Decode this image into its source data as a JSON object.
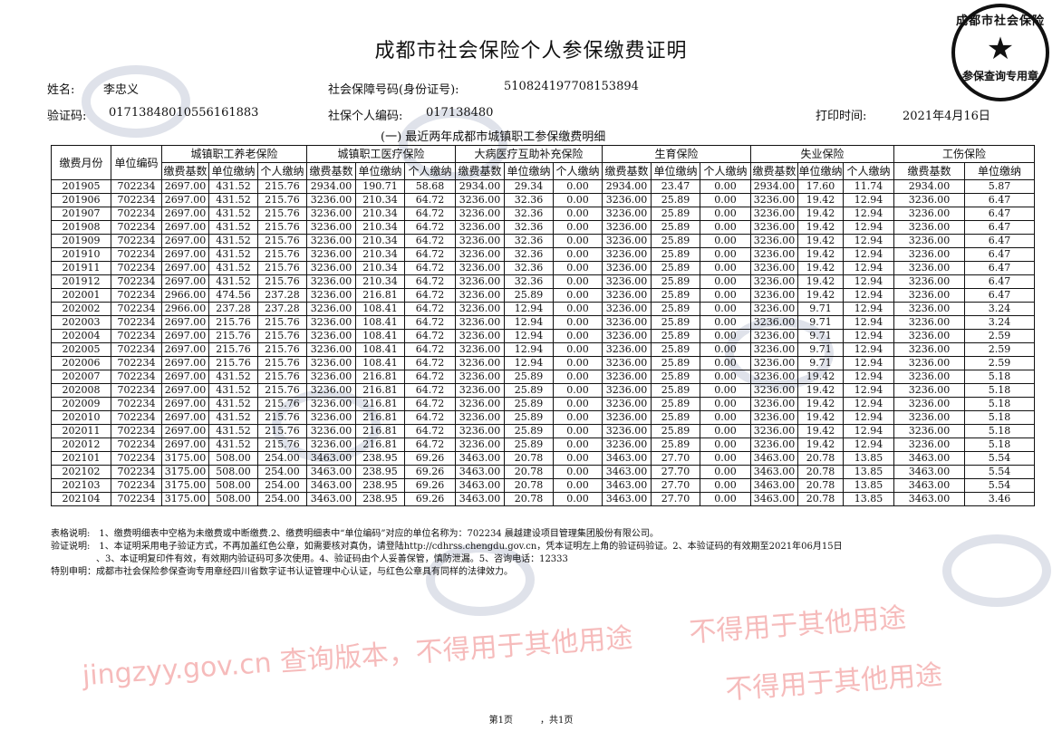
{
  "title": "成都市社会保险个人参保缴费证明",
  "info": {
    "name_label": "姓名:",
    "name": "李忠义",
    "ssn_label": "社会保障号码(身份证号):",
    "ssn": "510824197708153894",
    "verify_label": "验证码:",
    "verify": "01713848010556161883",
    "personal_code_label": "社保个人编码:",
    "personal_code": "017138480",
    "print_label": "打印时间:",
    "print_time": "2021年4月16日"
  },
  "section_title": "(一) 最近两年成都市城镇职工参保缴费明细",
  "table": {
    "col_month": "缴费月份",
    "col_unit": "单位编码",
    "groups": [
      "城镇职工养老保险",
      "城镇职工医疗保险",
      "大病医疗互助补充保险",
      "生育保险",
      "失业保险",
      "工伤保险"
    ],
    "sub": [
      "缴费基数",
      "单位缴纳",
      "个人缴纳",
      "缴费基数",
      "单位缴纳",
      "个人缴纳",
      "缴费基数",
      "单位缴纳",
      "个人缴纳",
      "缴费基数",
      "单位缴纳",
      "个人缴纳",
      "缴费基数",
      "单位缴纳",
      "个人缴纳",
      "缴费基数",
      "单位缴纳"
    ],
    "rows": [
      [
        "201905",
        "702234",
        "2697.00",
        "431.52",
        "215.76",
        "2934.00",
        "190.71",
        "58.68",
        "2934.00",
        "29.34",
        "0.00",
        "2934.00",
        "23.47",
        "0.00",
        "2934.00",
        "17.60",
        "11.74",
        "2934.00",
        "5.87"
      ],
      [
        "201906",
        "702234",
        "2697.00",
        "431.52",
        "215.76",
        "3236.00",
        "210.34",
        "64.72",
        "3236.00",
        "32.36",
        "0.00",
        "3236.00",
        "25.89",
        "0.00",
        "3236.00",
        "19.42",
        "12.94",
        "3236.00",
        "6.47"
      ],
      [
        "201907",
        "702234",
        "2697.00",
        "431.52",
        "215.76",
        "3236.00",
        "210.34",
        "64.72",
        "3236.00",
        "32.36",
        "0.00",
        "3236.00",
        "25.89",
        "0.00",
        "3236.00",
        "19.42",
        "12.94",
        "3236.00",
        "6.47"
      ],
      [
        "201908",
        "702234",
        "2697.00",
        "431.52",
        "215.76",
        "3236.00",
        "210.34",
        "64.72",
        "3236.00",
        "32.36",
        "0.00",
        "3236.00",
        "25.89",
        "0.00",
        "3236.00",
        "19.42",
        "12.94",
        "3236.00",
        "6.47"
      ],
      [
        "201909",
        "702234",
        "2697.00",
        "431.52",
        "215.76",
        "3236.00",
        "210.34",
        "64.72",
        "3236.00",
        "32.36",
        "0.00",
        "3236.00",
        "25.89",
        "0.00",
        "3236.00",
        "19.42",
        "12.94",
        "3236.00",
        "6.47"
      ],
      [
        "201910",
        "702234",
        "2697.00",
        "431.52",
        "215.76",
        "3236.00",
        "210.34",
        "64.72",
        "3236.00",
        "32.36",
        "0.00",
        "3236.00",
        "25.89",
        "0.00",
        "3236.00",
        "19.42",
        "12.94",
        "3236.00",
        "6.47"
      ],
      [
        "201911",
        "702234",
        "2697.00",
        "431.52",
        "215.76",
        "3236.00",
        "210.34",
        "64.72",
        "3236.00",
        "32.36",
        "0.00",
        "3236.00",
        "25.89",
        "0.00",
        "3236.00",
        "19.42",
        "12.94",
        "3236.00",
        "6.47"
      ],
      [
        "201912",
        "702234",
        "2697.00",
        "431.52",
        "215.76",
        "3236.00",
        "210.34",
        "64.72",
        "3236.00",
        "32.36",
        "0.00",
        "3236.00",
        "25.89",
        "0.00",
        "3236.00",
        "19.42",
        "12.94",
        "3236.00",
        "6.47"
      ],
      [
        "202001",
        "702234",
        "2966.00",
        "474.56",
        "237.28",
        "3236.00",
        "216.81",
        "64.72",
        "3236.00",
        "25.89",
        "0.00",
        "3236.00",
        "25.89",
        "0.00",
        "3236.00",
        "19.42",
        "12.94",
        "3236.00",
        "6.47"
      ],
      [
        "202002",
        "702234",
        "2966.00",
        "237.28",
        "237.28",
        "3236.00",
        "108.41",
        "64.72",
        "3236.00",
        "12.94",
        "0.00",
        "3236.00",
        "25.89",
        "0.00",
        "3236.00",
        "9.71",
        "12.94",
        "3236.00",
        "3.24"
      ],
      [
        "202003",
        "702234",
        "2697.00",
        "215.76",
        "215.76",
        "3236.00",
        "108.41",
        "64.72",
        "3236.00",
        "12.94",
        "0.00",
        "3236.00",
        "25.89",
        "0.00",
        "3236.00",
        "9.71",
        "12.94",
        "3236.00",
        "3.24"
      ],
      [
        "202004",
        "702234",
        "2697.00",
        "215.76",
        "215.76",
        "3236.00",
        "108.41",
        "64.72",
        "3236.00",
        "12.94",
        "0.00",
        "3236.00",
        "25.89",
        "0.00",
        "3236.00",
        "9.71",
        "12.94",
        "3236.00",
        "2.59"
      ],
      [
        "202005",
        "702234",
        "2697.00",
        "215.76",
        "215.76",
        "3236.00",
        "108.41",
        "64.72",
        "3236.00",
        "12.94",
        "0.00",
        "3236.00",
        "25.89",
        "0.00",
        "3236.00",
        "9.71",
        "12.94",
        "3236.00",
        "2.59"
      ],
      [
        "202006",
        "702234",
        "2697.00",
        "215.76",
        "215.76",
        "3236.00",
        "108.41",
        "64.72",
        "3236.00",
        "12.94",
        "0.00",
        "3236.00",
        "25.89",
        "0.00",
        "3236.00",
        "9.71",
        "12.94",
        "3236.00",
        "2.59"
      ],
      [
        "202007",
        "702234",
        "2697.00",
        "431.52",
        "215.76",
        "3236.00",
        "216.81",
        "64.72",
        "3236.00",
        "25.89",
        "0.00",
        "3236.00",
        "25.89",
        "0.00",
        "3236.00",
        "19.42",
        "12.94",
        "3236.00",
        "5.18"
      ],
      [
        "202008",
        "702234",
        "2697.00",
        "431.52",
        "215.76",
        "3236.00",
        "216.81",
        "64.72",
        "3236.00",
        "25.89",
        "0.00",
        "3236.00",
        "25.89",
        "0.00",
        "3236.00",
        "19.42",
        "12.94",
        "3236.00",
        "5.18"
      ],
      [
        "202009",
        "702234",
        "2697.00",
        "431.52",
        "215.76",
        "3236.00",
        "216.81",
        "64.72",
        "3236.00",
        "25.89",
        "0.00",
        "3236.00",
        "25.89",
        "0.00",
        "3236.00",
        "19.42",
        "12.94",
        "3236.00",
        "5.18"
      ],
      [
        "202010",
        "702234",
        "2697.00",
        "431.52",
        "215.76",
        "3236.00",
        "216.81",
        "64.72",
        "3236.00",
        "25.89",
        "0.00",
        "3236.00",
        "25.89",
        "0.00",
        "3236.00",
        "19.42",
        "12.94",
        "3236.00",
        "5.18"
      ],
      [
        "202011",
        "702234",
        "2697.00",
        "431.52",
        "215.76",
        "3236.00",
        "216.81",
        "64.72",
        "3236.00",
        "25.89",
        "0.00",
        "3236.00",
        "25.89",
        "0.00",
        "3236.00",
        "19.42",
        "12.94",
        "3236.00",
        "5.18"
      ],
      [
        "202012",
        "702234",
        "2697.00",
        "431.52",
        "215.76",
        "3236.00",
        "216.81",
        "64.72",
        "3236.00",
        "25.89",
        "0.00",
        "3236.00",
        "25.89",
        "0.00",
        "3236.00",
        "19.42",
        "12.94",
        "3236.00",
        "5.18"
      ],
      [
        "202101",
        "702234",
        "3175.00",
        "508.00",
        "254.00",
        "3463.00",
        "238.95",
        "69.26",
        "3463.00",
        "20.78",
        "0.00",
        "3463.00",
        "27.70",
        "0.00",
        "3463.00",
        "20.78",
        "13.85",
        "3463.00",
        "5.54"
      ],
      [
        "202102",
        "702234",
        "3175.00",
        "508.00",
        "254.00",
        "3463.00",
        "238.95",
        "69.26",
        "3463.00",
        "20.78",
        "0.00",
        "3463.00",
        "27.70",
        "0.00",
        "3463.00",
        "20.78",
        "13.85",
        "3463.00",
        "5.54"
      ],
      [
        "202103",
        "702234",
        "3175.00",
        "508.00",
        "254.00",
        "3463.00",
        "238.95",
        "69.26",
        "3463.00",
        "20.78",
        "0.00",
        "3463.00",
        "27.70",
        "0.00",
        "3463.00",
        "20.78",
        "13.85",
        "3463.00",
        "5.54"
      ],
      [
        "202104",
        "702234",
        "3175.00",
        "508.00",
        "254.00",
        "3463.00",
        "238.95",
        "69.26",
        "3463.00",
        "20.78",
        "0.00",
        "3463.00",
        "27.70",
        "0.00",
        "3463.00",
        "20.78",
        "13.85",
        "3463.00",
        "3.46"
      ]
    ]
  },
  "notes": [
    "表格说明:　1、缴费明细表中空格为未缴费或中断缴费.2、缴费明细表中“单位编码”对应的单位名称为：702234 晨越建设项目管理集团股份有限公司。",
    "验证说明:　1、本证明采用电子验证方式，不再加盖红色公章，如需要核对真伪，请登陆http://cdhrss.chengdu.gov.cn，凭本证明左上角的验证码验证。2、本验证码的有效期至2021年06月15日",
    "　　　　　、3、本证明复印件有效，有效期内验证码可多次使用。4、验证码由个人妥善保管，慎防泄漏。5、咨询电话：12333",
    "特别申明：成都市社会保险参保查询专用章经四川省数字证书认证管理中心认证，与红色公章具有同样的法律效力。"
  ],
  "footer": "第1页　　　，共1页",
  "stamp": {
    "ring": "成都市社会保险",
    "center": "参保查询专用章"
  },
  "watermark": [
    "不得用于其他用途",
    "jingzyy.gov.cn 查询版本，不得用于其他用途"
  ],
  "colors": {
    "watermark": "#e63c3c",
    "text": "#111111"
  }
}
